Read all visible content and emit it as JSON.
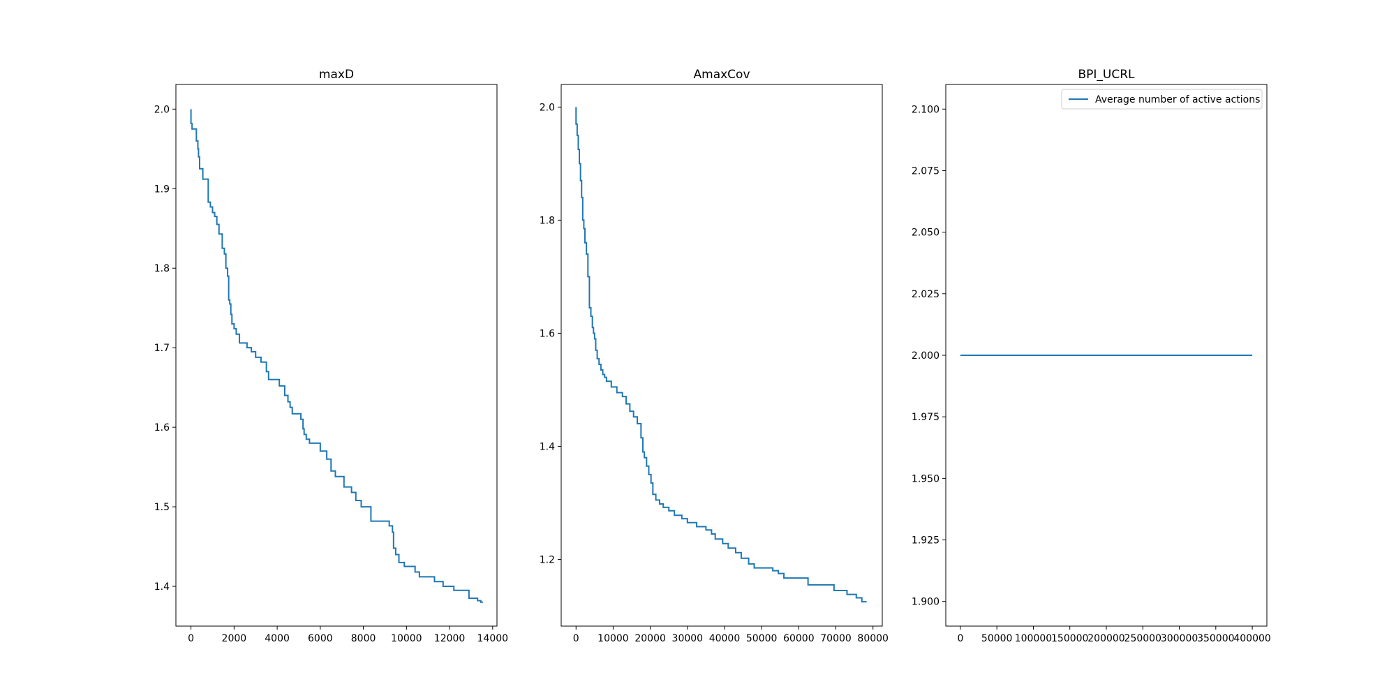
{
  "chart_data": [
    {
      "type": "line",
      "title": "maxD",
      "xlabel": "",
      "ylabel": "",
      "xlim": [
        -700,
        14200
      ],
      "ylim": [
        1.35,
        2.031
      ],
      "xticks": [
        0,
        2000,
        4000,
        6000,
        8000,
        10000,
        12000,
        14000
      ],
      "xtick_labels": [
        "0",
        "2000",
        "4000",
        "6000",
        "8000",
        "10000",
        "12000",
        "14000"
      ],
      "yticks": [
        1.4,
        1.5,
        1.6,
        1.7,
        1.8,
        1.9,
        2.0
      ],
      "ytick_labels": [
        "1.4",
        "1.5",
        "1.6",
        "1.7",
        "1.8",
        "1.9",
        "2.0"
      ],
      "line_color": "#1f77b4",
      "grid": false,
      "legend": null,
      "series": [
        {
          "step": true,
          "x": [
            0,
            50,
            250,
            320,
            350,
            400,
            550,
            800,
            900,
            1000,
            1100,
            1200,
            1300,
            1450,
            1550,
            1620,
            1700,
            1750,
            1800,
            1850,
            1900,
            2000,
            2100,
            2250,
            2600,
            2800,
            3000,
            3250,
            3500,
            3600,
            4100,
            4350,
            4500,
            4600,
            4700,
            5100,
            5200,
            5250,
            5350,
            5500,
            6000,
            6300,
            6500,
            6700,
            7100,
            7450,
            7650,
            7900,
            8350,
            9200,
            9350,
            9400,
            9500,
            9650,
            9900,
            10400,
            10600,
            11300,
            11700,
            12200,
            12900,
            13300,
            13450,
            13550
          ],
          "y": [
            2.0,
            1.982,
            1.975,
            1.96,
            1.95,
            1.94,
            1.925,
            1.912,
            1.883,
            1.877,
            1.87,
            1.865,
            1.855,
            1.843,
            1.825,
            1.818,
            1.8,
            1.79,
            1.76,
            1.755,
            1.742,
            1.73,
            1.724,
            1.717,
            1.706,
            1.7,
            1.695,
            1.688,
            1.682,
            1.67,
            1.66,
            1.652,
            1.64,
            1.632,
            1.625,
            1.617,
            1.61,
            1.598,
            1.591,
            1.585,
            1.58,
            1.57,
            1.56,
            1.545,
            1.538,
            1.525,
            1.518,
            1.508,
            1.5,
            1.482,
            1.476,
            1.468,
            1.448,
            1.44,
            1.43,
            1.425,
            1.418,
            1.412,
            1.406,
            1.4,
            1.395,
            1.385,
            1.382,
            1.38
          ]
        }
      ]
    },
    {
      "type": "line",
      "title": "AmaxCov",
      "xlabel": "",
      "ylabel": "",
      "xlim": [
        -4000,
        82500
      ],
      "ylim": [
        1.082,
        2.04
      ],
      "xticks": [
        0,
        10000,
        20000,
        30000,
        40000,
        50000,
        60000,
        70000,
        80000
      ],
      "xtick_labels": [
        "0",
        "10000",
        "20000",
        "30000",
        "40000",
        "50000",
        "60000",
        "70000",
        "80000"
      ],
      "yticks": [
        1.2,
        1.4,
        1.6,
        1.8,
        2.0
      ],
      "ytick_labels": [
        "1.2",
        "1.4",
        "1.6",
        "1.8",
        "2.0"
      ],
      "line_color": "#1f77b4",
      "grid": false,
      "legend": null,
      "series": [
        {
          "step": true,
          "x": [
            0,
            300,
            600,
            900,
            1200,
            1500,
            1800,
            2100,
            2400,
            2800,
            3200,
            3600,
            4000,
            4400,
            4700,
            5000,
            5300,
            5700,
            6200,
            6700,
            7200,
            7700,
            8200,
            9500,
            11000,
            12500,
            13500,
            14500,
            15500,
            16500,
            17500,
            18000,
            18400,
            19000,
            19600,
            20200,
            20700,
            21500,
            22500,
            23500,
            25000,
            26500,
            28500,
            30000,
            32500,
            35000,
            36500,
            37500,
            39500,
            41000,
            43000,
            44500,
            46500,
            48000,
            53000,
            54500,
            56000,
            62500,
            69500,
            73000,
            75500,
            77000,
            78300
          ],
          "y": [
            2.0,
            1.97,
            1.95,
            1.925,
            1.9,
            1.87,
            1.84,
            1.8,
            1.785,
            1.76,
            1.74,
            1.7,
            1.645,
            1.63,
            1.61,
            1.6,
            1.59,
            1.57,
            1.555,
            1.545,
            1.535,
            1.527,
            1.522,
            1.515,
            1.505,
            1.495,
            1.488,
            1.475,
            1.462,
            1.452,
            1.44,
            1.415,
            1.39,
            1.38,
            1.365,
            1.35,
            1.335,
            1.315,
            1.305,
            1.298,
            1.292,
            1.286,
            1.278,
            1.272,
            1.265,
            1.258,
            1.252,
            1.245,
            1.236,
            1.228,
            1.22,
            1.212,
            1.202,
            1.192,
            1.185,
            1.18,
            1.175,
            1.167,
            1.155,
            1.145,
            1.138,
            1.132,
            1.125
          ]
        }
      ]
    },
    {
      "type": "line",
      "title": "BPI_UCRL",
      "xlabel": "",
      "ylabel": "",
      "xlim": [
        -20000,
        420000
      ],
      "ylim": [
        1.89,
        2.11
      ],
      "xticks": [
        0,
        50000,
        100000,
        150000,
        200000,
        250000,
        300000,
        350000,
        400000
      ],
      "xtick_labels": [
        "0",
        "50000",
        "100000",
        "150000",
        "200000",
        "250000",
        "300000",
        "350000",
        "400000"
      ],
      "yticks": [
        1.9,
        1.925,
        1.95,
        1.975,
        2.0,
        2.025,
        2.05,
        2.075,
        2.1
      ],
      "ytick_labels": [
        "1.900",
        "1.925",
        "1.950",
        "1.975",
        "2.000",
        "2.025",
        "2.050",
        "2.075",
        "2.100"
      ],
      "line_color": "#1f77b4",
      "grid": false,
      "legend": {
        "position": "top-right",
        "entries": [
          "Average number of active actions"
        ]
      },
      "series": [
        {
          "name": "Average number of active actions",
          "step": false,
          "x": [
            0,
            400000
          ],
          "y": [
            2.0,
            2.0
          ]
        }
      ]
    }
  ]
}
